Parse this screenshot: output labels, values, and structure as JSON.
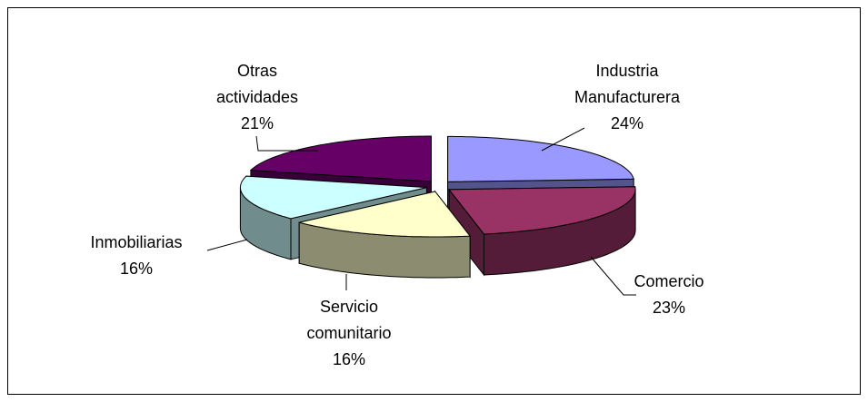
{
  "chart_data": {
    "type": "pie3d",
    "categories": [
      "Industria Manufacturera",
      "Comercio",
      "Servicio comunitario",
      "Inmobiliarias",
      "Otras actividades"
    ],
    "values": [
      24,
      23,
      16,
      16,
      21
    ],
    "value_labels": [
      "24%",
      "23%",
      "16%",
      "16%",
      "21%"
    ],
    "colors": [
      "#9999ff",
      "#993366",
      "#ffffcc",
      "#ccffff",
      "#660066"
    ]
  }
}
